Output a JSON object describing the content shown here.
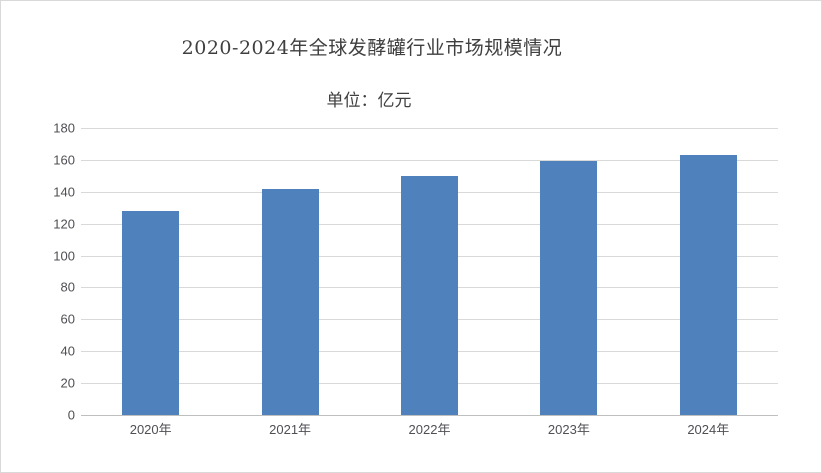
{
  "chart_data": {
    "type": "bar",
    "title": "2020-2024年全球发酵罐行业市场规模情况",
    "subtitle": "单位：亿元",
    "categories": [
      "2020年",
      "2021年",
      "2022年",
      "2023年",
      "2024年"
    ],
    "values": [
      128,
      142,
      150,
      159,
      163
    ],
    "xlabel": "",
    "ylabel": "",
    "ylim": [
      0,
      180
    ],
    "ytick_step": 20,
    "ytick_labels": [
      "0",
      "20",
      "40",
      "60",
      "80",
      "100",
      "120",
      "140",
      "160",
      "180"
    ],
    "grid": true,
    "legend": false,
    "colors": {
      "bar": "#4F81BD",
      "gridline": "#D9D9D9",
      "axis_line": "#BFBFBF",
      "title_text": "#3F3F3F",
      "tick_text": "#4F4F55",
      "border": "#D9D9D9",
      "background": "#FFFFFF"
    }
  }
}
